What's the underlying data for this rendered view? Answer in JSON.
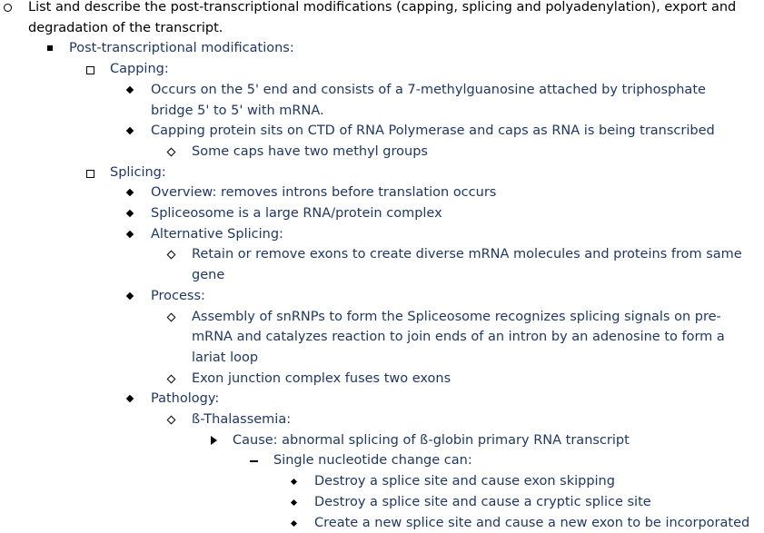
{
  "outline": {
    "item_1": "List and describe the post-transcriptional modifications (capping, splicing and polyadenylation), export and",
    "item_1_cont": "degradation of the transcript.",
    "post_mods": "Post-transcriptional modifications:",
    "capping": {
      "heading": "Capping:",
      "p1_line1": "Occurs on the 5' end and consists of  a 7-methylguanosine attached by triphosphate",
      "p1_line2": "bridge 5' to 5' with mRNA.",
      "p2": "Capping protein sits on CTD of RNA Polymerase and caps as RNA is being transcribed",
      "p2_sub": "Some caps have two methyl groups"
    },
    "splicing": {
      "heading": "Splicing:",
      "overview": "Overview: removes introns before translation occurs",
      "spliceosome": "Spliceosome is a large RNA/protein complex",
      "alt_heading": "Alternative Splicing:",
      "alt_line1": "Retain or remove exons to create diverse mRNA molecules and proteins from same",
      "alt_line2": "gene",
      "process_heading": "Process:",
      "process_1_line1": "Assembly of snRNPs to form the Spliceosome recognizes splicing signals on pre-",
      "process_1_line2": "mRNA and catalyzes reaction to join ends of an intron by an adenosine to form a",
      "process_1_line3": "lariat loop",
      "process_2": "Exon junction complex fuses two exons",
      "pathology_heading": "Pathology:",
      "thal_heading": "ß-Thalassemia:",
      "cause": "Cause: abnormal splicing of ß-globin primary RNA transcript",
      "single_change": "Single nucleotide change can:",
      "effect_1": "Destroy a splice site and cause exon skipping",
      "effect_2": "Destroy a splice site and cause a cryptic splice site",
      "effect_3": "Create a new splice site and cause a new exon to be incorporated"
    }
  }
}
